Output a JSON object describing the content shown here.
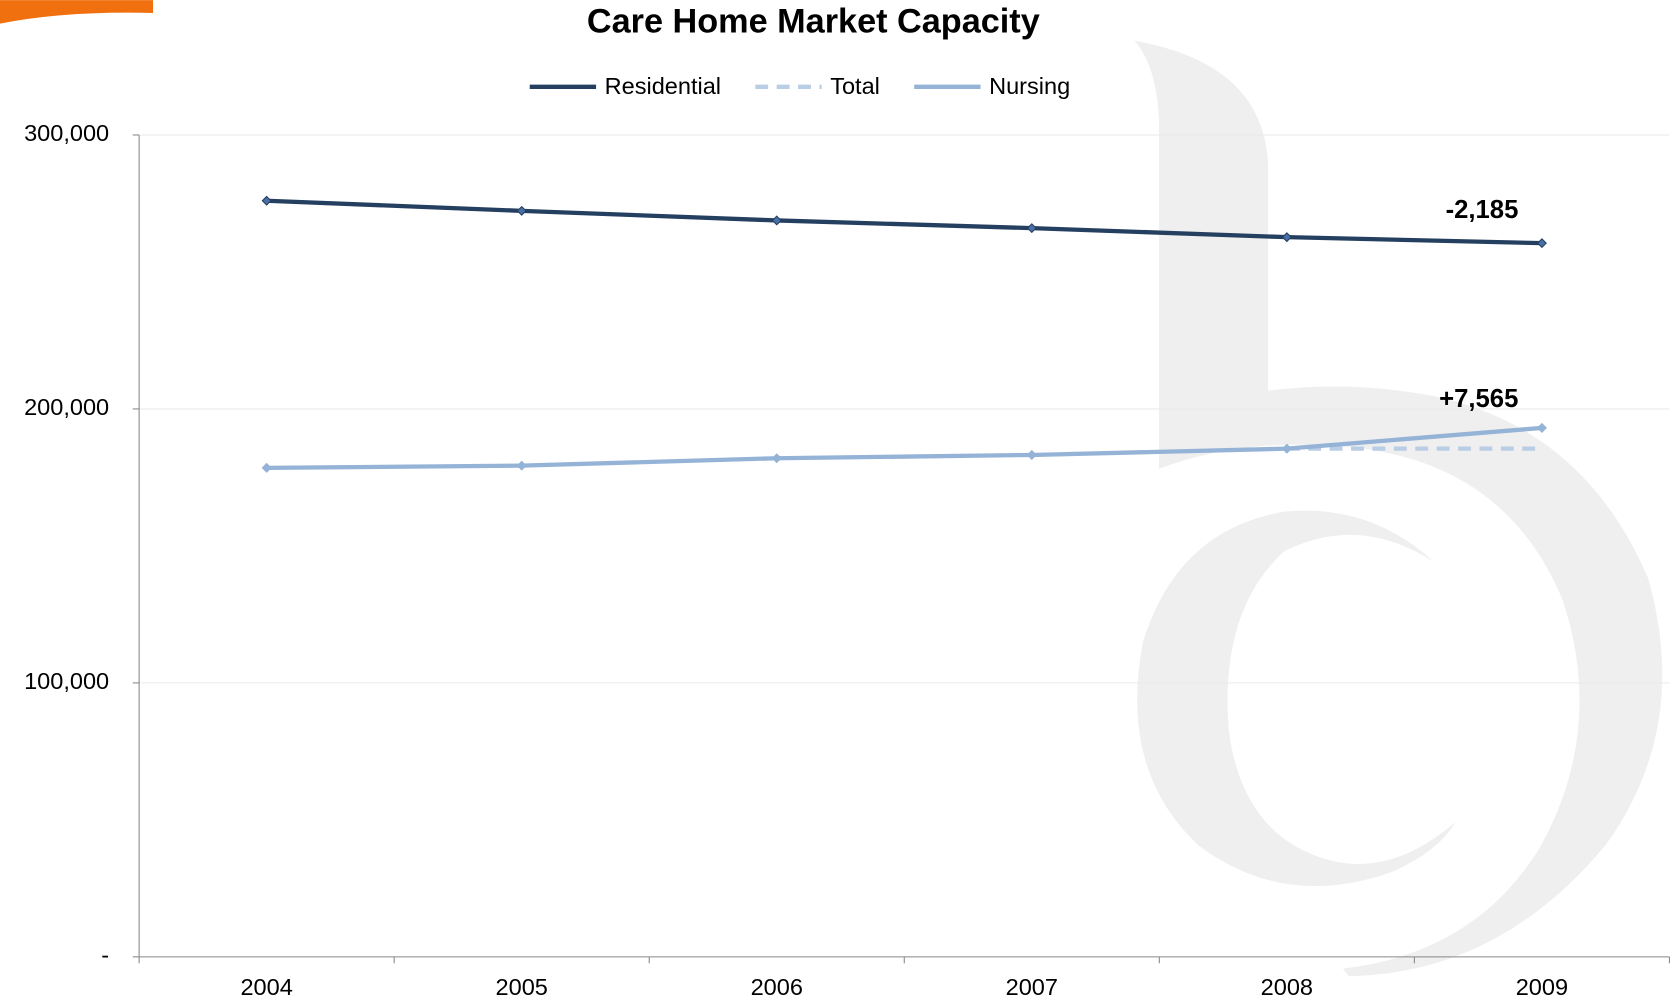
{
  "chart_data": {
    "type": "line",
    "title": "Care Home Market Capacity",
    "categories": [
      "2004",
      "2005",
      "2006",
      "2007",
      "2008",
      "2009"
    ],
    "series": [
      {
        "name": "Residential",
        "color": "#243f60",
        "values": [
          276000,
          272300,
          268800,
          266000,
          262700,
          260515
        ],
        "marker": true
      },
      {
        "name": "Total",
        "color": "#b9cde5",
        "values": [
          null,
          null,
          null,
          null,
          185500,
          185500
        ],
        "dashed": true
      },
      {
        "name": "Nursing",
        "color": "#95b3d7",
        "values": [
          178500,
          179300,
          182000,
          183200,
          185500,
          193065
        ],
        "marker": true
      }
    ],
    "ylim": [
      0,
      300000
    ],
    "yticks": [
      {
        "value": 0,
        "label": "-"
      },
      {
        "value": 100000,
        "label": "100,000"
      },
      {
        "value": 200000,
        "label": "200,000"
      },
      {
        "value": 300000,
        "label": "300,000"
      }
    ],
    "grid": true,
    "legend": "top",
    "annotations": [
      {
        "text": "-2,185",
        "color": "#953735"
      },
      {
        "text": "+7,565",
        "color": "#77933c"
      }
    ]
  }
}
